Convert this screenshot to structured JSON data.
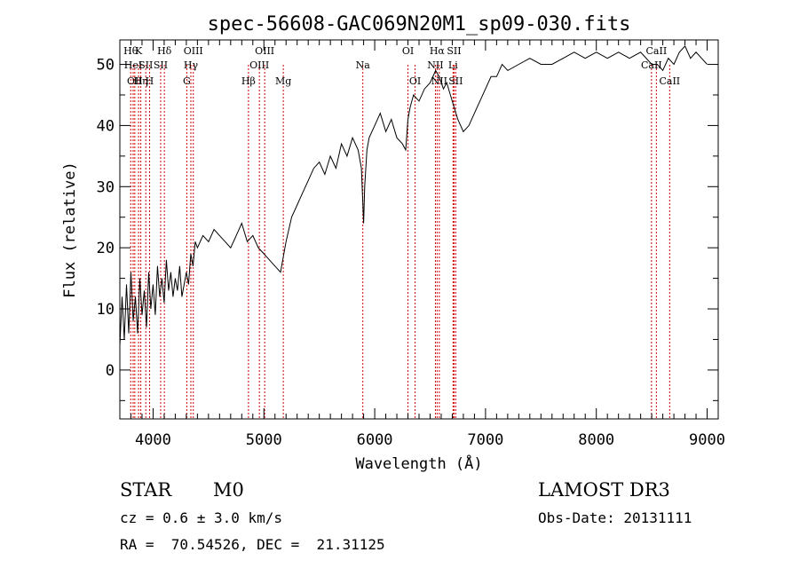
{
  "chart_data": {
    "type": "line",
    "title": "spec-56608-GAC069N20M1_sp09-030.fits",
    "xlabel": "Wavelength (Å)",
    "ylabel": "Flux (relative)",
    "xlim": [
      3700,
      9100
    ],
    "ylim": [
      -8,
      54
    ],
    "xticks": [
      {
        "value": 4000,
        "label": "4000"
      },
      {
        "value": 5000,
        "label": "5000"
      },
      {
        "value": 6000,
        "label": "6000"
      },
      {
        "value": 7000,
        "label": "7000"
      },
      {
        "value": 8000,
        "label": "8000"
      },
      {
        "value": 9000,
        "label": "9000"
      }
    ],
    "yticks": [
      {
        "value": 0,
        "label": "0"
      },
      {
        "value": 10,
        "label": "10"
      },
      {
        "value": 20,
        "label": "20"
      },
      {
        "value": 30,
        "label": "30"
      },
      {
        "value": 40,
        "label": "40"
      },
      {
        "value": 50,
        "label": "50"
      }
    ],
    "grid": false,
    "line_color": "#000000",
    "marker_color": "#cc0000",
    "series": [
      {
        "name": "flux",
        "x": [
          3700,
          3720,
          3740,
          3760,
          3780,
          3800,
          3820,
          3840,
          3860,
          3880,
          3900,
          3920,
          3940,
          3960,
          3980,
          4000,
          4020,
          4040,
          4060,
          4080,
          4100,
          4120,
          4140,
          4160,
          4180,
          4200,
          4220,
          4240,
          4260,
          4280,
          4300,
          4320,
          4340,
          4360,
          4380,
          4400,
          4450,
          4500,
          4550,
          4600,
          4650,
          4700,
          4750,
          4800,
          4850,
          4900,
          4950,
          5000,
          5050,
          5100,
          5150,
          5200,
          5250,
          5300,
          5350,
          5400,
          5450,
          5500,
          5550,
          5600,
          5650,
          5700,
          5750,
          5800,
          5850,
          5880,
          5900,
          5910,
          5930,
          5950,
          6000,
          6050,
          6100,
          6150,
          6200,
          6250,
          6280,
          6300,
          6320,
          6350,
          6400,
          6450,
          6500,
          6550,
          6580,
          6600,
          6620,
          6650,
          6700,
          6750,
          6800,
          6850,
          6900,
          6950,
          7000,
          7050,
          7100,
          7150,
          7200,
          7300,
          7400,
          7500,
          7600,
          7700,
          7800,
          7900,
          8000,
          8100,
          8200,
          8300,
          8400,
          8500,
          8550,
          8600,
          8650,
          8700,
          8750,
          8800,
          8850,
          8900,
          8950,
          9000
        ],
        "y": [
          4,
          12,
          5,
          14,
          6,
          16,
          8,
          12,
          6,
          15,
          9,
          13,
          7,
          16,
          10,
          14,
          9,
          17,
          12,
          15,
          11,
          18,
          13,
          16,
          12,
          15,
          13,
          17,
          12,
          14,
          16,
          14,
          19,
          17,
          21,
          20,
          22,
          21,
          23,
          22,
          21,
          20,
          22,
          24,
          21,
          22,
          20,
          19,
          18,
          17,
          16,
          21,
          25,
          27,
          29,
          31,
          33,
          34,
          32,
          35,
          33,
          37,
          35,
          38,
          36,
          33,
          24,
          30,
          36,
          38,
          40,
          42,
          39,
          41,
          38,
          37,
          36,
          41,
          43,
          45,
          44,
          46,
          47,
          49,
          48,
          47,
          46,
          47,
          44,
          41,
          39,
          40,
          42,
          44,
          46,
          48,
          48,
          50,
          49,
          50,
          51,
          50,
          50,
          51,
          52,
          51,
          52,
          51,
          52,
          51,
          52,
          50,
          50,
          49,
          51,
          50,
          52,
          53,
          51,
          52,
          51,
          50
        ]
      }
    ],
    "line_markers": [
      {
        "wavelength": 3798,
        "label": "Hθ",
        "row": 0
      },
      {
        "wavelength": 3820,
        "label": "HeI",
        "row": 1
      },
      {
        "wavelength": 3835,
        "label": "OII",
        "row": 2
      },
      {
        "wavelength": 3869,
        "label": "K",
        "row": 0
      },
      {
        "wavelength": 3889,
        "label": "Hη",
        "row": 2
      },
      {
        "wavelength": 3934,
        "label": "SII",
        "row": 1
      },
      {
        "wavelength": 3968,
        "label": "H",
        "row": 2
      },
      {
        "wavelength": 4102,
        "label": "Hδ",
        "row": 0
      },
      {
        "wavelength": 4068,
        "label": "SII",
        "row": 1
      },
      {
        "wavelength": 4304,
        "label": "G",
        "row": 2
      },
      {
        "wavelength": 4341,
        "label": "Hγ",
        "row": 1
      },
      {
        "wavelength": 4363,
        "label": "OIII",
        "row": 0
      },
      {
        "wavelength": 4861,
        "label": "Hβ",
        "row": 2
      },
      {
        "wavelength": 4959,
        "label": "OIII",
        "row": 1
      },
      {
        "wavelength": 5007,
        "label": "OIII",
        "row": 0
      },
      {
        "wavelength": 5175,
        "label": "Mg",
        "row": 2
      },
      {
        "wavelength": 5893,
        "label": "Na",
        "row": 1
      },
      {
        "wavelength": 6300,
        "label": "OI",
        "row": 0
      },
      {
        "wavelength": 6364,
        "label": "OI",
        "row": 2
      },
      {
        "wavelength": 6548,
        "label": "NII",
        "row": 1
      },
      {
        "wavelength": 6563,
        "label": "Hα",
        "row": 0
      },
      {
        "wavelength": 6583,
        "label": "NII",
        "row": 2
      },
      {
        "wavelength": 6707,
        "label": "Li",
        "row": 1
      },
      {
        "wavelength": 6716,
        "label": "SII",
        "row": 0
      },
      {
        "wavelength": 6731,
        "label": "SII",
        "row": 2
      },
      {
        "wavelength": 8498,
        "label": "CaII",
        "row": 1
      },
      {
        "wavelength": 8542,
        "label": "CaII",
        "row": 0
      },
      {
        "wavelength": 8662,
        "label": "CaII",
        "row": 2
      }
    ]
  },
  "info": {
    "class": "STAR",
    "subclass": "M0",
    "survey": "LAMOST DR3",
    "cz": "cz = 0.6 ± 3.0 km/s",
    "obs_date": "Obs-Date: 20131111",
    "coords": "RA =  70.54526, DEC =  21.31125"
  }
}
